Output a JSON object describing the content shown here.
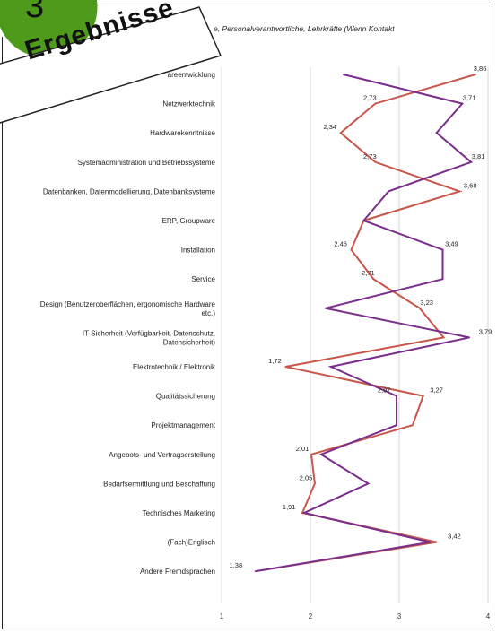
{
  "badge": {
    "number": "3",
    "ribbon_label": "Ergebnisse",
    "badge_color": "#4e9a1a"
  },
  "chart_data": {
    "type": "line",
    "subtitle": "e, Personalverantwortliche, Lehrkräfte (Wenn Kontakt",
    "categories": [
      "Softwareentwicklung",
      "Netzwerktechnik",
      "Hardwarekenntnisse",
      "Systemadministration und Betriebssysteme",
      "Datenbanken, Datenmodellierung, Datenbanksysteme",
      "ERP, Groupware",
      "Installation",
      "Service",
      "Design (Benutzeroberflächen, ergonomische Hardware etc.)",
      "IT-Sicherheit (Verfügbarkeit, Datenschutz, Datensicherheit)",
      "Elektrotechnik / Elektronik",
      "Qualitätssicherung",
      "Projektmanagement",
      "Angebots- und Vertragserstellung",
      "Bedarfsermittlung und Beschaffung",
      "Technisches Marketing",
      "(Fach)Englisch",
      "Andere Fremdsprachen"
    ],
    "category_labels": [
      [
        "areentwicklung"
      ],
      [
        "Netzwerktechnik"
      ],
      [
        "Hardwarekenntnisse"
      ],
      [
        "Systemadministration und Betriebssysteme"
      ],
      [
        "Datenbanken, Datenmodellierung, Datenbanksysteme"
      ],
      [
        "ERP, Groupware"
      ],
      [
        "Installation"
      ],
      [
        "Service"
      ],
      [
        "Design (Benutzeroberflächen, ergonomische Hardware",
        "etc.)"
      ],
      [
        "IT-Sicherheit (Verfügbarkeit, Datenschutz,",
        "Datensicherheit)"
      ],
      [
        "Elektrotechnik / Elektronik"
      ],
      [
        "Qualitätssicherung"
      ],
      [
        "Projektmanagement"
      ],
      [
        "Angebots- und Vertragserstellung"
      ],
      [
        "Bedarfsermittlung und Beschaffung"
      ],
      [
        "Technisches Marketing"
      ],
      [
        "(Fach)Englisch"
      ],
      [
        "Andere Fremdsprachen"
      ]
    ],
    "series": [
      {
        "color": "#c8564a",
        "values": [
          3.86,
          2.73,
          2.34,
          2.73,
          3.68,
          2.6,
          2.46,
          2.71,
          3.23,
          3.5,
          1.72,
          3.27,
          3.15,
          2.01,
          2.05,
          1.91,
          3.42,
          1.38
        ]
      },
      {
        "color": "#7a2e8c",
        "values": [
          2.37,
          3.71,
          3.42,
          3.81,
          2.88,
          2.6,
          3.49,
          3.49,
          2.17,
          3.79,
          2.23,
          2.97,
          2.97,
          2.12,
          2.65,
          1.93,
          3.35,
          1.38
        ]
      }
    ],
    "data_labels": [
      "3,86",
      "2,73",
      "3,71",
      "2,34",
      "2,73",
      "3,81",
      "3,68",
      "2,46",
      "3,49",
      "2,71",
      "3,23",
      "3,79",
      "1,72",
      "2,97",
      "3,27",
      "2,01",
      "2,05",
      "1,91",
      "3,42",
      "1,38"
    ],
    "x_ticks": [
      "1",
      "2",
      "3",
      "4"
    ],
    "xlim": [
      1,
      4
    ],
    "grid": true
  }
}
